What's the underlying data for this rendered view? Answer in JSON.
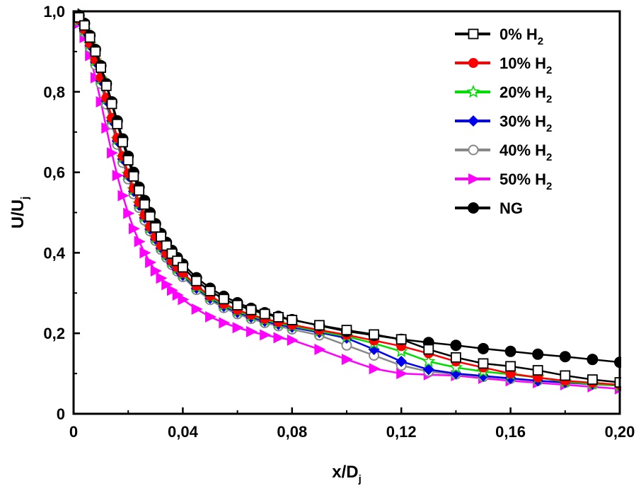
{
  "chart_data": {
    "type": "line",
    "xlabel": {
      "main": "x/D",
      "sub": "j"
    },
    "ylabel": {
      "main": "U/U",
      "sub": "j"
    },
    "xlim": [
      0,
      0.2
    ],
    "ylim": [
      0,
      1.0
    ],
    "xticks": [
      0,
      0.04,
      0.08,
      0.12,
      0.16,
      0.2
    ],
    "xtick_labels": [
      "0",
      "0,04",
      "0,08",
      "0,12",
      "0,16",
      "0,20"
    ],
    "yticks": [
      0,
      0.2,
      0.4,
      0.6,
      0.8,
      1.0
    ],
    "ytick_labels": [
      "0",
      "0,2",
      "0,4",
      "0,6",
      "0,8",
      "1,0"
    ],
    "legend_position": "top-right",
    "series": [
      {
        "name": "0% H",
        "sub": "2",
        "color": "#000000",
        "marker": "square-open",
        "x": [
          0,
          0.002,
          0.004,
          0.006,
          0.008,
          0.01,
          0.012,
          0.014,
          0.016,
          0.018,
          0.02,
          0.022,
          0.024,
          0.026,
          0.028,
          0.03,
          0.032,
          0.034,
          0.036,
          0.038,
          0.04,
          0.045,
          0.05,
          0.055,
          0.06,
          0.065,
          0.07,
          0.075,
          0.08,
          0.09,
          0.1,
          0.11,
          0.12,
          0.13,
          0.14,
          0.15,
          0.16,
          0.17,
          0.18,
          0.19,
          0.2
        ],
        "y": [
          1.0,
          0.985,
          0.965,
          0.935,
          0.9,
          0.86,
          0.815,
          0.77,
          0.72,
          0.675,
          0.63,
          0.59,
          0.555,
          0.52,
          0.49,
          0.463,
          0.44,
          0.418,
          0.398,
          0.38,
          0.364,
          0.33,
          0.305,
          0.285,
          0.27,
          0.258,
          0.248,
          0.24,
          0.233,
          0.22,
          0.208,
          0.197,
          0.185,
          0.16,
          0.14,
          0.125,
          0.118,
          0.108,
          0.095,
          0.085,
          0.078
        ]
      },
      {
        "name": "10% H",
        "sub": "2",
        "color": "#ff0000",
        "marker": "circle-filled",
        "x": [
          0,
          0.002,
          0.004,
          0.006,
          0.008,
          0.01,
          0.012,
          0.014,
          0.016,
          0.018,
          0.02,
          0.022,
          0.024,
          0.026,
          0.028,
          0.03,
          0.032,
          0.034,
          0.036,
          0.038,
          0.04,
          0.045,
          0.05,
          0.055,
          0.06,
          0.065,
          0.07,
          0.075,
          0.08,
          0.09,
          0.1,
          0.11,
          0.12,
          0.13,
          0.14,
          0.15,
          0.16,
          0.17,
          0.18,
          0.19,
          0.2
        ],
        "y": [
          1.0,
          0.98,
          0.955,
          0.92,
          0.88,
          0.835,
          0.785,
          0.735,
          0.685,
          0.64,
          0.597,
          0.56,
          0.525,
          0.493,
          0.465,
          0.44,
          0.418,
          0.398,
          0.38,
          0.364,
          0.35,
          0.318,
          0.293,
          0.273,
          0.258,
          0.246,
          0.236,
          0.228,
          0.221,
          0.208,
          0.196,
          0.182,
          0.168,
          0.15,
          0.13,
          0.115,
          0.1,
          0.09,
          0.082,
          0.077,
          0.072
        ]
      },
      {
        "name": "20% H",
        "sub": "2",
        "color": "#00dd00",
        "marker": "star-open",
        "x": [
          0,
          0.002,
          0.004,
          0.006,
          0.008,
          0.01,
          0.012,
          0.014,
          0.016,
          0.018,
          0.02,
          0.022,
          0.024,
          0.026,
          0.028,
          0.03,
          0.032,
          0.034,
          0.036,
          0.038,
          0.04,
          0.045,
          0.05,
          0.055,
          0.06,
          0.065,
          0.07,
          0.075,
          0.08,
          0.09,
          0.1,
          0.11,
          0.12,
          0.13,
          0.14,
          0.15,
          0.16,
          0.17,
          0.18,
          0.19,
          0.2
        ],
        "y": [
          1.0,
          0.979,
          0.953,
          0.918,
          0.877,
          0.832,
          0.782,
          0.732,
          0.682,
          0.637,
          0.595,
          0.557,
          0.522,
          0.49,
          0.462,
          0.437,
          0.415,
          0.395,
          0.377,
          0.361,
          0.347,
          0.315,
          0.29,
          0.27,
          0.255,
          0.243,
          0.233,
          0.225,
          0.218,
          0.205,
          0.192,
          0.175,
          0.155,
          0.13,
          0.115,
          0.105,
          0.098,
          0.09,
          0.08,
          0.074,
          0.07
        ]
      },
      {
        "name": "30% H",
        "sub": "2",
        "color": "#0000ee",
        "marker": "diamond-filled",
        "x": [
          0,
          0.002,
          0.004,
          0.006,
          0.008,
          0.01,
          0.012,
          0.014,
          0.016,
          0.018,
          0.02,
          0.022,
          0.024,
          0.026,
          0.028,
          0.03,
          0.032,
          0.034,
          0.036,
          0.038,
          0.04,
          0.045,
          0.05,
          0.055,
          0.06,
          0.065,
          0.07,
          0.075,
          0.08,
          0.09,
          0.1,
          0.11,
          0.12,
          0.13,
          0.14,
          0.15,
          0.16,
          0.17,
          0.18,
          0.19,
          0.2
        ],
        "y": [
          1.0,
          0.978,
          0.951,
          0.915,
          0.874,
          0.828,
          0.778,
          0.728,
          0.678,
          0.633,
          0.591,
          0.553,
          0.518,
          0.487,
          0.459,
          0.434,
          0.412,
          0.392,
          0.374,
          0.358,
          0.344,
          0.312,
          0.287,
          0.267,
          0.252,
          0.24,
          0.23,
          0.222,
          0.215,
          0.202,
          0.188,
          0.16,
          0.13,
          0.11,
          0.1,
          0.094,
          0.088,
          0.082,
          0.078,
          0.074,
          0.07
        ]
      },
      {
        "name": "40% H",
        "sub": "2",
        "color": "#888888",
        "marker": "circle-open",
        "x": [
          0,
          0.002,
          0.004,
          0.006,
          0.008,
          0.01,
          0.012,
          0.014,
          0.016,
          0.018,
          0.02,
          0.022,
          0.024,
          0.026,
          0.028,
          0.03,
          0.032,
          0.034,
          0.036,
          0.038,
          0.04,
          0.045,
          0.05,
          0.055,
          0.06,
          0.065,
          0.07,
          0.075,
          0.08,
          0.09,
          0.1,
          0.11,
          0.12,
          0.13,
          0.14,
          0.15,
          0.16,
          0.17,
          0.18,
          0.19,
          0.2
        ],
        "y": [
          1.0,
          0.977,
          0.948,
          0.91,
          0.867,
          0.82,
          0.769,
          0.719,
          0.669,
          0.624,
          0.583,
          0.546,
          0.512,
          0.481,
          0.454,
          0.43,
          0.408,
          0.388,
          0.37,
          0.354,
          0.34,
          0.308,
          0.283,
          0.263,
          0.248,
          0.236,
          0.226,
          0.218,
          0.21,
          0.195,
          0.17,
          0.145,
          0.12,
          0.105,
          0.098,
          0.092,
          0.087,
          0.082,
          0.077,
          0.073,
          0.07
        ]
      },
      {
        "name": "50% H",
        "sub": "2",
        "color": "#ff00ff",
        "marker": "triangle-right-filled",
        "x": [
          0,
          0.002,
          0.004,
          0.006,
          0.008,
          0.01,
          0.012,
          0.014,
          0.016,
          0.018,
          0.02,
          0.022,
          0.024,
          0.026,
          0.028,
          0.03,
          0.032,
          0.034,
          0.036,
          0.038,
          0.04,
          0.045,
          0.05,
          0.055,
          0.06,
          0.065,
          0.07,
          0.075,
          0.08,
          0.09,
          0.1,
          0.11,
          0.12,
          0.13,
          0.14,
          0.15,
          0.16,
          0.17,
          0.18,
          0.19,
          0.2
        ],
        "y": [
          1.0,
          0.97,
          0.935,
          0.89,
          0.835,
          0.775,
          0.71,
          0.648,
          0.592,
          0.542,
          0.498,
          0.46,
          0.428,
          0.4,
          0.376,
          0.355,
          0.337,
          0.321,
          0.307,
          0.295,
          0.284,
          0.26,
          0.241,
          0.226,
          0.214,
          0.204,
          0.196,
          0.189,
          0.183,
          0.16,
          0.135,
          0.112,
          0.1,
          0.097,
          0.095,
          0.088,
          0.082,
          0.077,
          0.072,
          0.067,
          0.062
        ]
      },
      {
        "name": "NG",
        "sub": "",
        "color": "#000000",
        "marker": "circle-filled-large",
        "x": [
          0,
          0.002,
          0.004,
          0.006,
          0.008,
          0.01,
          0.012,
          0.014,
          0.016,
          0.018,
          0.02,
          0.022,
          0.024,
          0.026,
          0.028,
          0.03,
          0.032,
          0.034,
          0.036,
          0.038,
          0.04,
          0.045,
          0.05,
          0.055,
          0.06,
          0.065,
          0.07,
          0.075,
          0.08,
          0.09,
          0.1,
          0.11,
          0.12,
          0.13,
          0.14,
          0.15,
          0.16,
          0.17,
          0.18,
          0.19,
          0.2
        ],
        "y": [
          1.0,
          0.99,
          0.97,
          0.94,
          0.905,
          0.865,
          0.82,
          0.775,
          0.728,
          0.683,
          0.64,
          0.6,
          0.563,
          0.53,
          0.5,
          0.472,
          0.448,
          0.426,
          0.406,
          0.388,
          0.372,
          0.338,
          0.312,
          0.292,
          0.276,
          0.262,
          0.251,
          0.242,
          0.234,
          0.219,
          0.205,
          0.195,
          0.185,
          0.177,
          0.17,
          0.162,
          0.155,
          0.148,
          0.142,
          0.135,
          0.128
        ]
      }
    ]
  }
}
